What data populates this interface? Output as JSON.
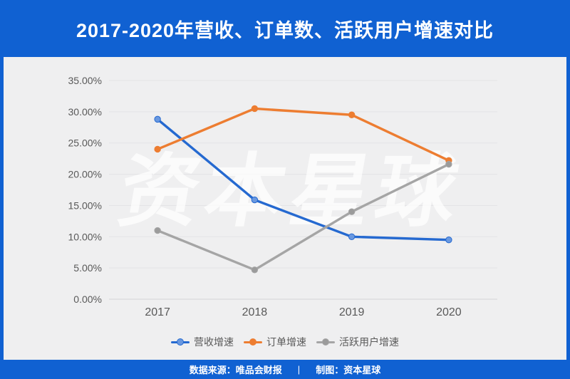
{
  "header": {
    "title": "2017-2020年营收、订单数、活跃用户增速对比"
  },
  "watermark": "资本星球",
  "footer": {
    "source_label": "数据来源：唯品会财报",
    "separator": "|",
    "credit_label": "制图：资本星球"
  },
  "colors": {
    "brand_blue": "#1061d2",
    "panel_background": "#efeff0",
    "gridline": "#e3e3e5",
    "axis_line": "#d3d3d6",
    "axis_text": "#595959",
    "revenue_blue": "#2569d0",
    "orders_orange": "#ed7d31",
    "users_gray": "#a5a5a5"
  },
  "chart_data": {
    "type": "line",
    "title": "2017-2020年营收、订单数、活跃用户增速对比",
    "categories": [
      "2017",
      "2018",
      "2019",
      "2020"
    ],
    "series": [
      {
        "name": "营收增速",
        "color": "#2569d0",
        "marker_fill": "#6998e0",
        "values": [
          28.8,
          15.9,
          10.0,
          9.5
        ]
      },
      {
        "name": "订单增速",
        "color": "#ed7d31",
        "marker_fill": "#ed7d31",
        "values": [
          24.0,
          30.5,
          29.5,
          22.2
        ]
      },
      {
        "name": "活跃用户增速",
        "color": "#a5a5a5",
        "marker_fill": "#9b9b9b",
        "values": [
          11.0,
          4.7,
          14.0,
          21.6
        ]
      }
    ],
    "xlabel": "",
    "ylabel": "",
    "ylim": [
      0,
      35
    ],
    "ytick_step": 5,
    "ytick_labels": [
      "0.00%",
      "5.00%",
      "10.00%",
      "15.00%",
      "20.00%",
      "25.00%",
      "30.00%",
      "35.00%"
    ],
    "grid": true,
    "legend_position": "bottom"
  }
}
